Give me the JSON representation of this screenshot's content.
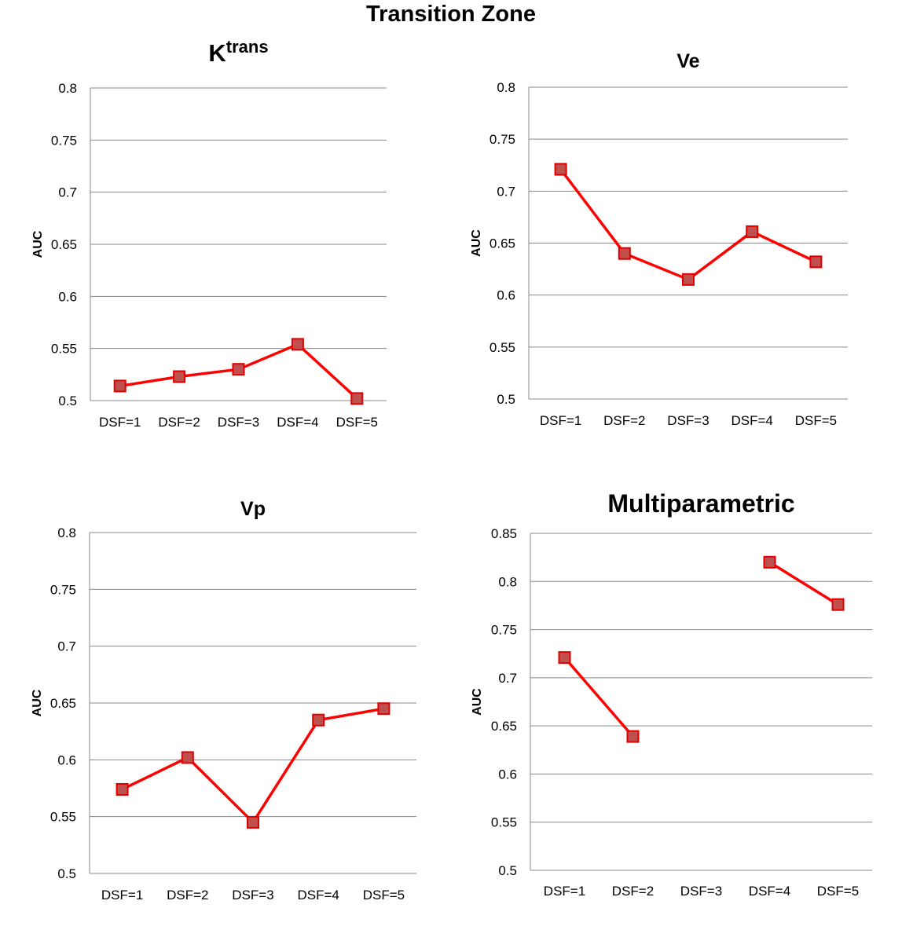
{
  "figure": {
    "title": "Transition Zone"
  },
  "colors": {
    "line": "#ff0000",
    "marker_fill": "#c0504d",
    "marker_edge": "#e00000",
    "grid": "#888888"
  },
  "chart_data": [
    {
      "id": "ktrans",
      "type": "line",
      "title": "K",
      "title_sup": "trans",
      "ylabel": "AUC",
      "xlabel": "",
      "categories": [
        "DSF=1",
        "DSF=2",
        "DSF=3",
        "DSF=4",
        "DSF=5"
      ],
      "series": [
        {
          "values": [
            0.514,
            0.523,
            0.53,
            0.554,
            0.502
          ]
        }
      ],
      "ylim": [
        0.5,
        0.8
      ],
      "yticks": [
        "0.5",
        "0.55",
        "0.6",
        "0.65",
        "0.7",
        "0.75",
        "0.8"
      ],
      "grid": true
    },
    {
      "id": "ve",
      "type": "line",
      "title": "Ve",
      "ylabel": "AUC",
      "xlabel": "",
      "categories": [
        "DSF=1",
        "DSF=2",
        "DSF=3",
        "DSF=4",
        "DSF=5"
      ],
      "series": [
        {
          "values": [
            0.721,
            0.64,
            0.615,
            0.661,
            0.632
          ]
        }
      ],
      "ylim": [
        0.5,
        0.8
      ],
      "yticks": [
        "0.5",
        "0.55",
        "0.6",
        "0.65",
        "0.7",
        "0.75",
        "0.8"
      ],
      "grid": true
    },
    {
      "id": "vp",
      "type": "line",
      "title": "Vp",
      "ylabel": "AUC",
      "xlabel": "",
      "categories": [
        "DSF=1",
        "DSF=2",
        "DSF=3",
        "DSF=4",
        "DSF=5"
      ],
      "series": [
        {
          "values": [
            0.574,
            0.602,
            0.545,
            0.635,
            0.645
          ]
        }
      ],
      "ylim": [
        0.5,
        0.8
      ],
      "yticks": [
        "0.5",
        "0.55",
        "0.6",
        "0.65",
        "0.7",
        "0.75",
        "0.8"
      ],
      "grid": true
    },
    {
      "id": "multi",
      "type": "line",
      "title": "Multiparametric",
      "ylabel": "AUC",
      "xlabel": "",
      "categories": [
        "DSF=1",
        "DSF=2",
        "DSF=3",
        "DSF=4",
        "DSF=5"
      ],
      "series": [
        {
          "values": [
            0.721,
            0.639,
            null,
            0.82,
            0.776
          ]
        }
      ],
      "ylim": [
        0.5,
        0.85
      ],
      "yticks": [
        "0.5",
        "0.55",
        "0.6",
        "0.65",
        "0.7",
        "0.75",
        "0.8",
        "0.85"
      ],
      "grid": true
    }
  ]
}
